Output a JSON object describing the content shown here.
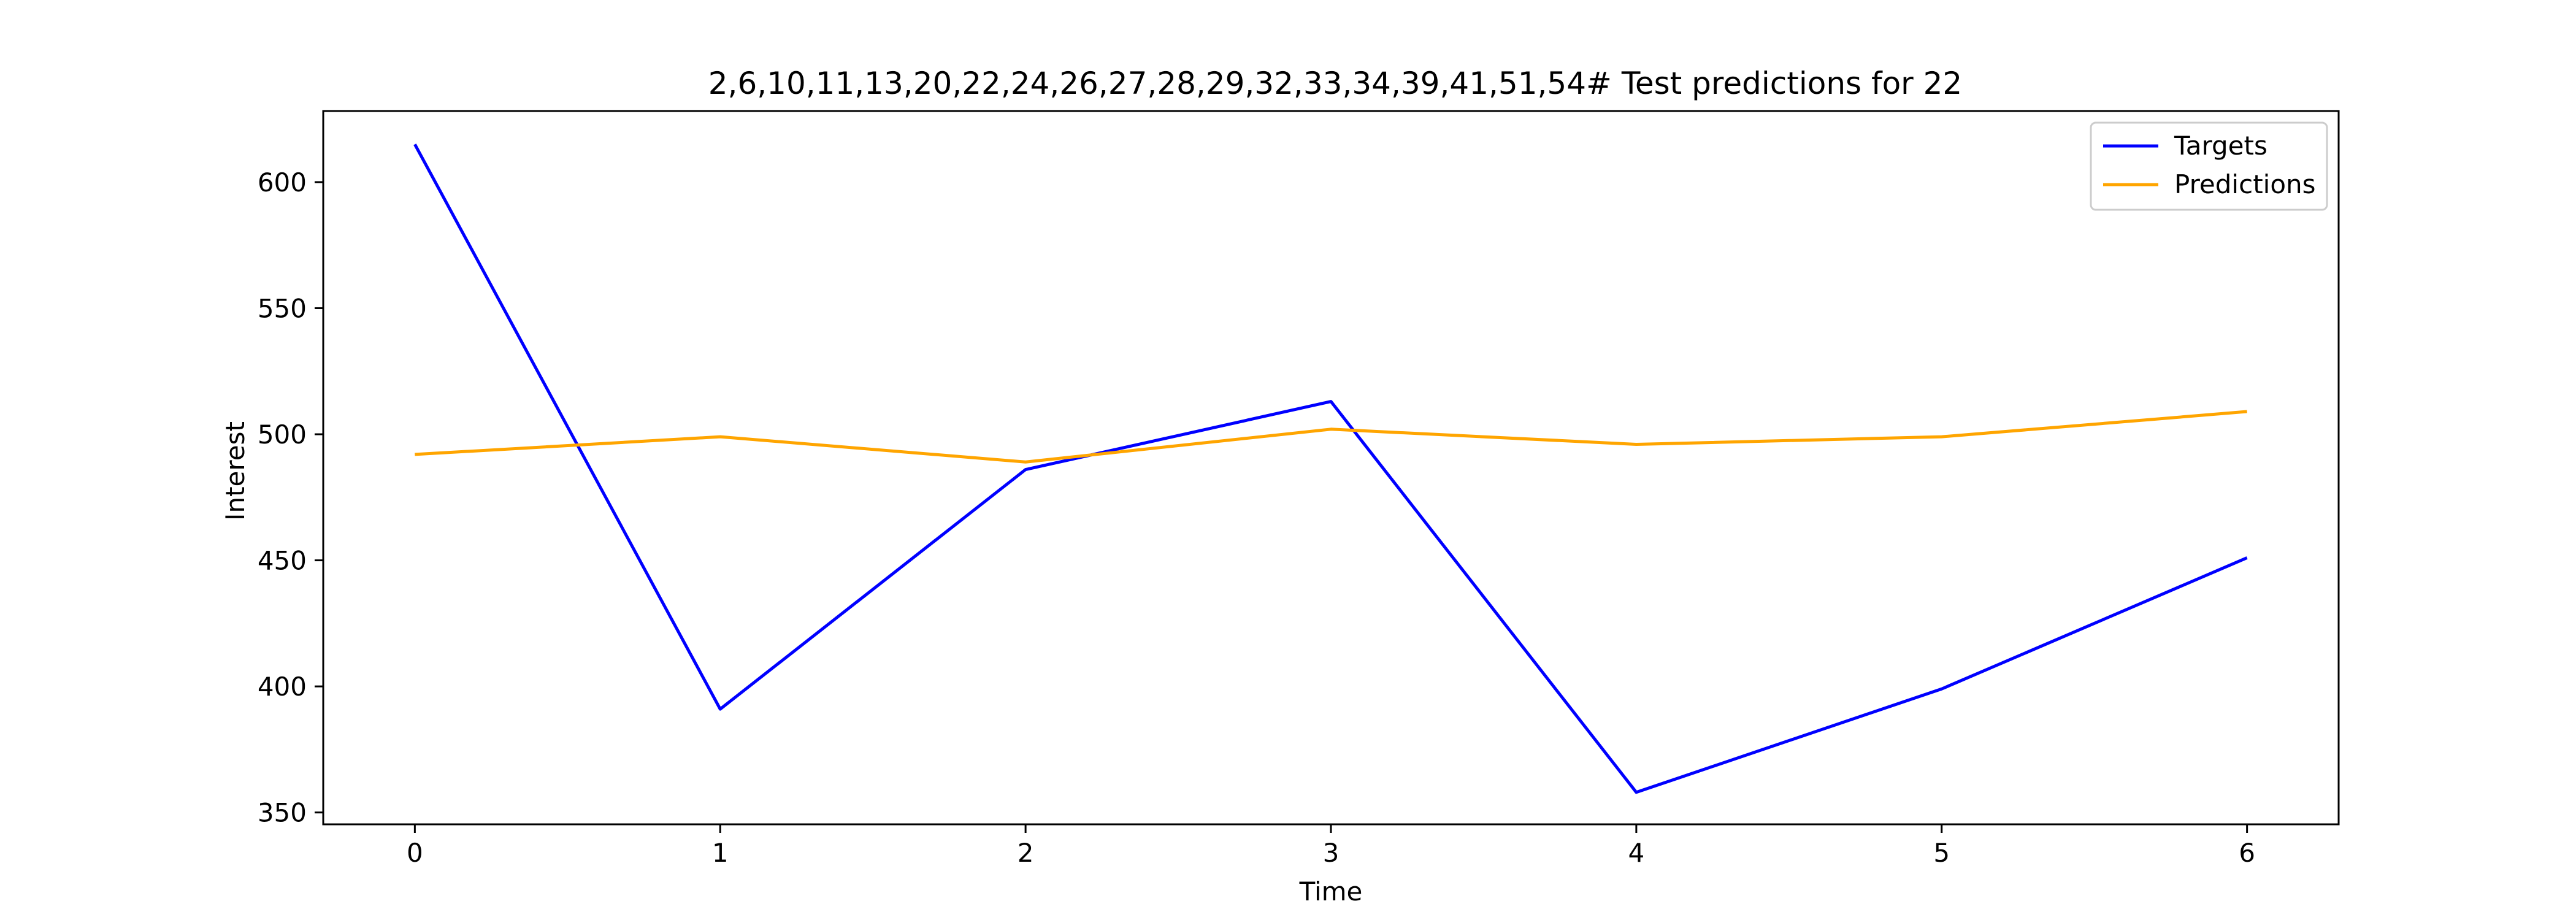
{
  "chart_data": {
    "type": "line",
    "title": "2,6,10,11,13,20,22,24,26,27,28,29,32,33,34,39,41,51,54# Test predictions for 22",
    "xlabel": "Time",
    "ylabel": "Interest",
    "x": [
      0,
      1,
      2,
      3,
      4,
      5,
      6
    ],
    "x_ticks": [
      "0",
      "1",
      "2",
      "3",
      "4",
      "5",
      "6"
    ],
    "xlim": [
      -0.3,
      6.3
    ],
    "y_ticks": [
      "350",
      "400",
      "450",
      "500",
      "550",
      "600"
    ],
    "ylim": [
      345.3,
      628.2
    ],
    "grid": false,
    "legend_position": "top-right",
    "series": [
      {
        "name": "Targets",
        "color": "#0000ff",
        "values": [
          615,
          391,
          486,
          513,
          358,
          399,
          451
        ]
      },
      {
        "name": "Predictions",
        "color": "#ffa500",
        "values": [
          492,
          499,
          489,
          502,
          496,
          499,
          509
        ]
      }
    ]
  }
}
